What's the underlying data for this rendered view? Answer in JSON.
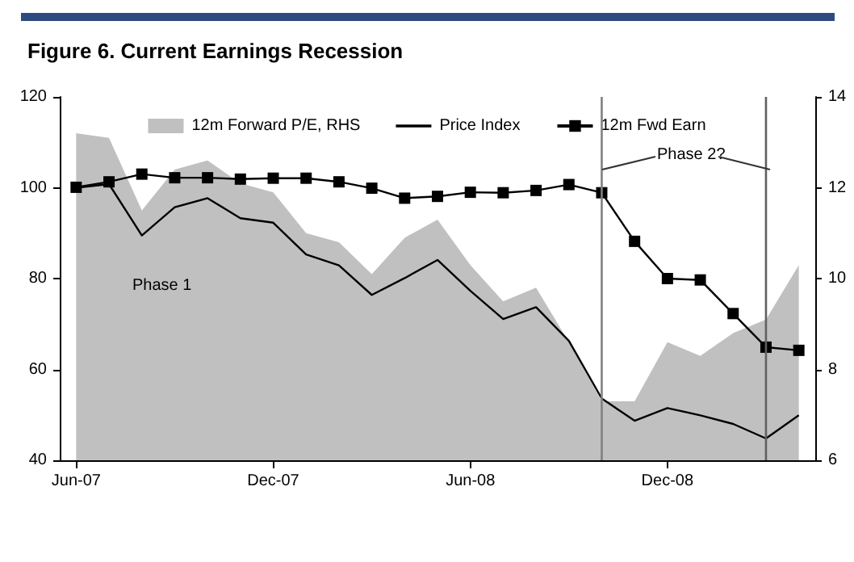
{
  "chart_data": {
    "type": "line",
    "title": "Figure 6. Current Earnings Recession",
    "categories": [
      "Jun-07",
      null,
      null,
      null,
      null,
      null,
      "Dec-07",
      null,
      null,
      null,
      null,
      null,
      "Jun-08",
      null,
      null,
      null,
      null,
      null,
      "Dec-08",
      null,
      null,
      null,
      null
    ],
    "ylim": [
      40,
      120
    ],
    "yticks": [
      40,
      60,
      80,
      100,
      120
    ],
    "y2lim": [
      6,
      14
    ],
    "y2ticks": [
      6,
      8,
      10,
      12,
      14
    ],
    "series": [
      {
        "name": "12m Forward P/E, RHS",
        "type": "area",
        "axis": "y2",
        "color": "#c0c0c0",
        "values": [
          13.2,
          13.1,
          11.5,
          12.4,
          12.6,
          12.1,
          11.9,
          11.0,
          10.8,
          10.1,
          10.9,
          11.3,
          10.3,
          9.5,
          9.8,
          8.6,
          7.3,
          7.3,
          8.6,
          8.3,
          8.8,
          9.1,
          10.3
        ]
      },
      {
        "name": "Price Index",
        "color": "#000000",
        "marker": "none",
        "values": [
          100.0,
          100.8,
          89.5,
          95.7,
          97.7,
          93.3,
          92.3,
          85.3,
          82.9,
          76.4,
          80.1,
          84.1,
          77.3,
          71.1,
          73.7,
          66.3,
          53.6,
          48.7,
          51.5,
          49.9,
          48.0,
          44.8,
          49.9
        ]
      },
      {
        "name": "12m Fwd Earn",
        "color": "#000000",
        "marker": "square",
        "values": [
          100.1,
          101.3,
          103.0,
          102.2,
          102.2,
          101.9,
          102.1,
          102.1,
          101.3,
          99.9,
          97.7,
          98.1,
          99.0,
          98.9,
          99.4,
          100.7,
          98.9,
          88.2,
          80.0,
          79.7,
          72.3,
          64.9,
          64.2
        ]
      }
    ],
    "annotations": [
      "Phase 1",
      "Phase 2?"
    ],
    "legend": "top",
    "grid": false
  }
}
